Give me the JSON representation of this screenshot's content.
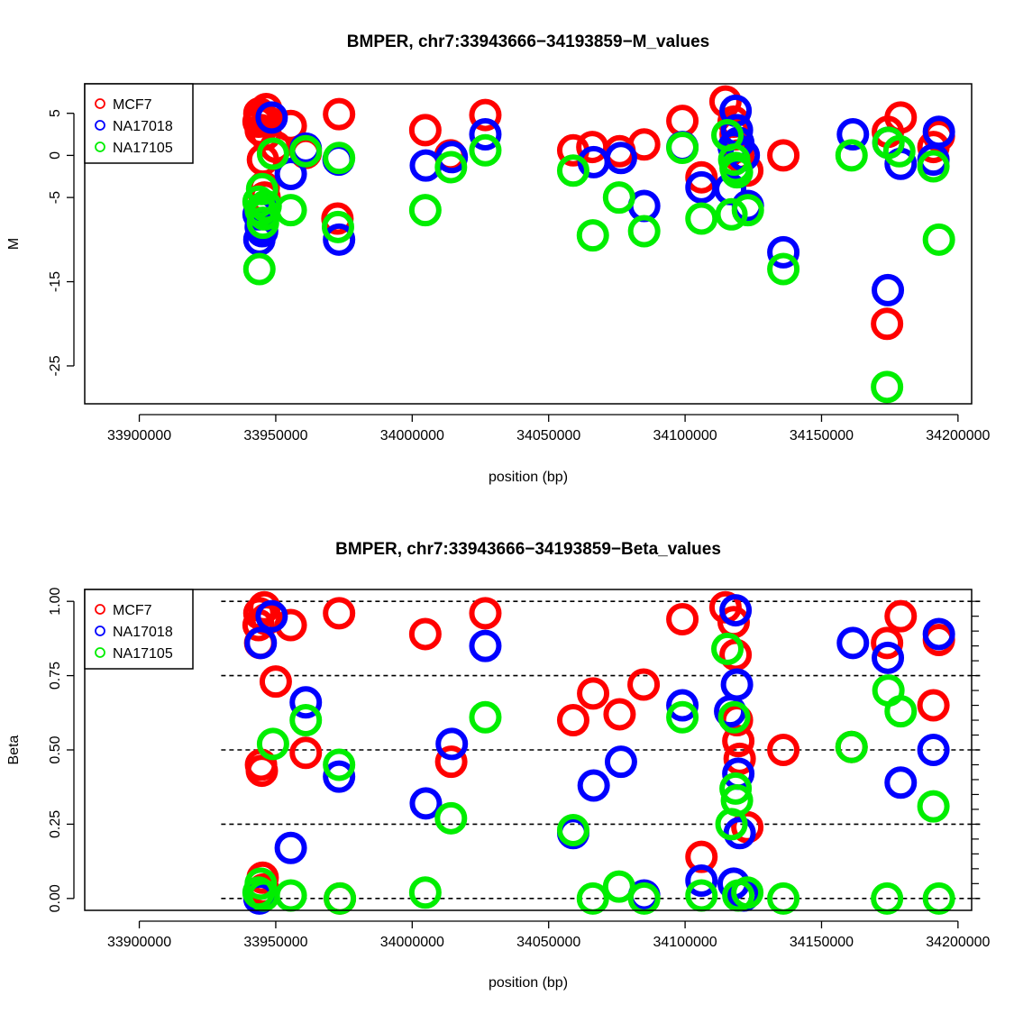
{
  "colors": {
    "MCF7": "#ff0000",
    "NA17018": "#0000ff",
    "NA17105": "#00ee00"
  },
  "chart_data": [
    {
      "type": "scatter",
      "title": "BMPER, chr7:33943666−34193859−M_values",
      "xlabel": "position (bp)",
      "ylabel": "M",
      "xlim": [
        33880000,
        34205000
      ],
      "ylim": [
        -29.5,
        8.5
      ],
      "x_ticks": [
        33900000,
        33950000,
        34000000,
        34050000,
        34100000,
        34150000,
        34200000
      ],
      "y_ticks": [
        5,
        0,
        -5,
        -15,
        -25
      ],
      "y_tick_labels": [
        "5",
        "0",
        "-5",
        "-15",
        "-25"
      ],
      "legend": {
        "position": "top-left",
        "entries": [
          "MCF7",
          "NA17018",
          "NA17105"
        ]
      },
      "series": [
        {
          "name": "MCF7",
          "color": "#ff0000",
          "points": [
            [
              33943700,
              4.0
            ],
            [
              33944000,
              5.0
            ],
            [
              33944500,
              3.0
            ],
            [
              33945000,
              4.5
            ],
            [
              33945300,
              -0.5
            ],
            [
              33945600,
              -3.8
            ],
            [
              33945900,
              -5.0
            ],
            [
              33946200,
              2.5
            ],
            [
              33946500,
              5.5
            ],
            [
              33947000,
              4.0
            ],
            [
              33950000,
              1.0
            ],
            [
              33955500,
              3.5
            ],
            [
              33961000,
              0.3
            ],
            [
              33972600,
              -7.5
            ],
            [
              33973200,
              4.9
            ],
            [
              34004800,
              3.0
            ],
            [
              34014000,
              0.0
            ],
            [
              34026800,
              4.8
            ],
            [
              34059000,
              0.6
            ],
            [
              34066000,
              1.0
            ],
            [
              34076000,
              0.5
            ],
            [
              34085000,
              1.3
            ],
            [
              34099000,
              4.1
            ],
            [
              34106000,
              -2.6
            ],
            [
              34114800,
              6.4
            ],
            [
              34117800,
              4.0
            ],
            [
              34118500,
              2.5
            ],
            [
              34119000,
              1.0
            ],
            [
              34119500,
              0.0
            ],
            [
              34122800,
              -1.8
            ],
            [
              34136000,
              0.0
            ],
            [
              34174000,
              -20.0
            ],
            [
              34174300,
              2.8
            ],
            [
              34179000,
              4.5
            ],
            [
              34191000,
              1.0
            ],
            [
              34193000,
              2.3
            ]
          ]
        },
        {
          "name": "NA17018",
          "color": "#0000ff",
          "points": [
            [
              33943700,
              -7.0
            ],
            [
              33944000,
              -10.0
            ],
            [
              33944500,
              -8.5
            ],
            [
              33945000,
              -9.0
            ],
            [
              33945500,
              -6.5
            ],
            [
              33948500,
              4.5
            ],
            [
              33955500,
              -2.2
            ],
            [
              33961000,
              0.8
            ],
            [
              33973000,
              -0.5
            ],
            [
              33973200,
              -10.0
            ],
            [
              34005000,
              -1.2
            ],
            [
              34014500,
              -0.2
            ],
            [
              34026800,
              2.5
            ],
            [
              34066500,
              -0.8
            ],
            [
              34076500,
              -0.3
            ],
            [
              34085000,
              -6.0
            ],
            [
              34099000,
              1.0
            ],
            [
              34106000,
              -3.8
            ],
            [
              34116500,
              -4.0
            ],
            [
              34117800,
              1.0
            ],
            [
              34118500,
              5.3
            ],
            [
              34119000,
              3.0
            ],
            [
              34119500,
              1.5
            ],
            [
              34121500,
              0.0
            ],
            [
              34123000,
              -6.0
            ],
            [
              34136000,
              -11.5
            ],
            [
              34161500,
              2.5
            ],
            [
              34174300,
              -16.0
            ],
            [
              34174500,
              1.5
            ],
            [
              34179000,
              -1.0
            ],
            [
              34191000,
              -0.5
            ],
            [
              34193000,
              2.8
            ]
          ]
        },
        {
          "name": "NA17105",
          "color": "#00ee00",
          "points": [
            [
              33943700,
              -5.5
            ],
            [
              33944000,
              -13.5
            ],
            [
              33944500,
              -6.5
            ],
            [
              33945000,
              -4.0
            ],
            [
              33945300,
              -8.0
            ],
            [
              33945800,
              -7.0
            ],
            [
              33946300,
              -6.0
            ],
            [
              33949000,
              0.2
            ],
            [
              33955500,
              -6.5
            ],
            [
              33961000,
              0.5
            ],
            [
              33972800,
              -8.5
            ],
            [
              33973200,
              -0.3
            ],
            [
              34004800,
              -6.5
            ],
            [
              34014200,
              -1.4
            ],
            [
              34026800,
              0.6
            ],
            [
              34059000,
              -1.8
            ],
            [
              34066200,
              -9.5
            ],
            [
              34075800,
              -5.0
            ],
            [
              34085000,
              -9.0
            ],
            [
              34099000,
              0.9
            ],
            [
              34106000,
              -7.5
            ],
            [
              34115500,
              2.4
            ],
            [
              34117000,
              -7.0
            ],
            [
              34118000,
              -0.5
            ],
            [
              34118500,
              -1.5
            ],
            [
              34119000,
              -2.0
            ],
            [
              34123000,
              -6.5
            ],
            [
              34136000,
              -13.5
            ],
            [
              34161000,
              0.0
            ],
            [
              34174000,
              -27.5
            ],
            [
              34174500,
              1.5
            ],
            [
              34178500,
              0.5
            ],
            [
              34191000,
              -1.3
            ],
            [
              34193000,
              -10.0
            ]
          ]
        }
      ]
    },
    {
      "type": "scatter",
      "title": "BMPER, chr7:33943666−34193859−Beta_values",
      "xlabel": "position (bp)",
      "ylabel": "Beta",
      "xlim": [
        33880000,
        34205000
      ],
      "ylim": [
        -0.04,
        1.04
      ],
      "x_ticks": [
        33900000,
        33950000,
        34000000,
        34050000,
        34100000,
        34150000,
        34200000
      ],
      "y_ticks": [
        0.0,
        0.25,
        0.5,
        0.75,
        1.0
      ],
      "y_tick_labels": [
        "0.00",
        "0.25",
        "0.50",
        "0.75",
        "1.00"
      ],
      "reference_lines": [
        0.0,
        0.25,
        0.5,
        0.75,
        1.0
      ],
      "legend": {
        "position": "top-left",
        "entries": [
          "MCF7",
          "NA17018",
          "NA17105"
        ]
      },
      "series": [
        {
          "name": "MCF7",
          "color": "#ff0000",
          "points": [
            [
              33943700,
              0.92
            ],
            [
              33944000,
              0.96
            ],
            [
              33944300,
              0.86
            ],
            [
              33944600,
              0.45
            ],
            [
              33944900,
              0.43
            ],
            [
              33945200,
              0.07
            ],
            [
              33945500,
              0.03
            ],
            [
              33945800,
              0.98
            ],
            [
              33946500,
              0.94
            ],
            [
              33950000,
              0.73
            ],
            [
              33955500,
              0.92
            ],
            [
              33961000,
              0.49
            ],
            [
              33973200,
              0.96
            ],
            [
              33973500,
              0.0
            ],
            [
              34004800,
              0.89
            ],
            [
              34014300,
              0.46
            ],
            [
              34026800,
              0.96
            ],
            [
              34059000,
              0.6
            ],
            [
              34066300,
              0.69
            ],
            [
              34076000,
              0.62
            ],
            [
              34084800,
              0.72
            ],
            [
              34099000,
              0.94
            ],
            [
              34106000,
              0.14
            ],
            [
              34114800,
              0.98
            ],
            [
              34117800,
              0.93
            ],
            [
              34118500,
              0.82
            ],
            [
              34119000,
              0.6
            ],
            [
              34119500,
              0.53
            ],
            [
              34120000,
              0.47
            ],
            [
              34122800,
              0.24
            ],
            [
              34136000,
              0.5
            ],
            [
              34161000,
              0.51
            ],
            [
              34174000,
              0.86
            ],
            [
              34179000,
              0.95
            ],
            [
              34191000,
              0.65
            ],
            [
              34193000,
              0.87
            ]
          ]
        },
        {
          "name": "NA17018",
          "color": "#0000ff",
          "points": [
            [
              33944000,
              0.0
            ],
            [
              33944500,
              0.86
            ],
            [
              33948500,
              0.95
            ],
            [
              33955500,
              0.17
            ],
            [
              33961000,
              0.66
            ],
            [
              33973200,
              0.41
            ],
            [
              34005000,
              0.32
            ],
            [
              34014500,
              0.52
            ],
            [
              34026800,
              0.85
            ],
            [
              34059000,
              0.22
            ],
            [
              34066500,
              0.38
            ],
            [
              34076500,
              0.46
            ],
            [
              34085000,
              0.01
            ],
            [
              34099000,
              0.65
            ],
            [
              34106000,
              0.06
            ],
            [
              34116500,
              0.63
            ],
            [
              34117800,
              0.05
            ],
            [
              34118500,
              0.97
            ],
            [
              34119000,
              0.72
            ],
            [
              34119500,
              0.42
            ],
            [
              34120000,
              0.22
            ],
            [
              34121500,
              0.01
            ],
            [
              34161500,
              0.86
            ],
            [
              34174300,
              0.81
            ],
            [
              34179000,
              0.39
            ],
            [
              34191000,
              0.5
            ],
            [
              34193000,
              0.89
            ]
          ]
        },
        {
          "name": "NA17105",
          "color": "#00ee00",
          "points": [
            [
              33943700,
              0.02
            ],
            [
              33944500,
              0.05
            ],
            [
              33945500,
              0.01
            ],
            [
              33949000,
              0.52
            ],
            [
              33955500,
              0.01
            ],
            [
              33961000,
              0.6
            ],
            [
              33973200,
              0.45
            ],
            [
              33973500,
              0.0
            ],
            [
              34004800,
              0.02
            ],
            [
              34014200,
              0.27
            ],
            [
              34026800,
              0.61
            ],
            [
              34059000,
              0.23
            ],
            [
              34066200,
              0.0
            ],
            [
              34075800,
              0.04
            ],
            [
              34085000,
              0.0
            ],
            [
              34099000,
              0.61
            ],
            [
              34106000,
              0.01
            ],
            [
              34115500,
              0.84
            ],
            [
              34117000,
              0.25
            ],
            [
              34118000,
              0.61
            ],
            [
              34118500,
              0.37
            ],
            [
              34119000,
              0.33
            ],
            [
              34119500,
              0.01
            ],
            [
              34122800,
              0.02
            ],
            [
              34136000,
              0.0
            ],
            [
              34161000,
              0.51
            ],
            [
              34174000,
              0.0
            ],
            [
              34174500,
              0.7
            ],
            [
              34179000,
              0.63
            ],
            [
              34191000,
              0.31
            ],
            [
              34193000,
              0.0
            ]
          ]
        }
      ]
    }
  ]
}
